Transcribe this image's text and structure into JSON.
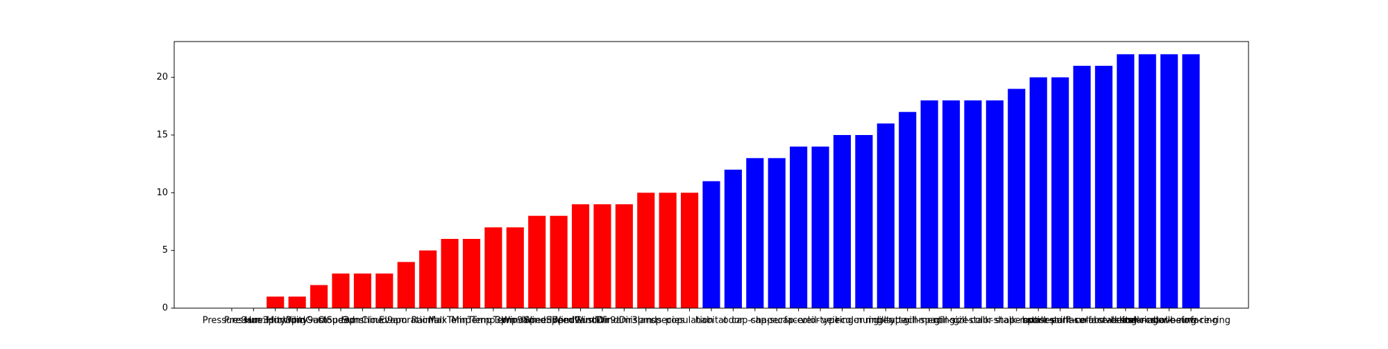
{
  "chart_data": {
    "type": "bar",
    "categories": [
      "Pressure9am",
      "Pressure3pm",
      "Humidity3pm",
      "Humidity9am",
      "WindGustSpeed",
      "Cloud3pm",
      "Sunshine",
      "Cloud9am",
      "Evaporation",
      "Rainfall",
      "MaxTemp",
      "MinTemp",
      "Temp3pm",
      "Temp9am",
      "WindSpeed3pm",
      "WindSpeed9am",
      "WindGustDir",
      "WindDir9am",
      "WindDir3pm",
      "islands",
      "species",
      "population",
      "habitat",
      "odor",
      "cap-shape",
      "cap-surface",
      "cap-color",
      "veil-type",
      "veil-color",
      "ring-number",
      "ring-type",
      "gill-attachment",
      "gill-spacing",
      "gill-size",
      "gill-color",
      "stalk-shape",
      "stalk-root",
      "bruises",
      "spore-print-color",
      "stalk-surface-above-ring",
      "stalk-surface-below-ring",
      "class",
      "stalk-color-above-ring",
      "stalk-color-below-ring",
      "stalk-surface-ring"
    ],
    "values": [
      0,
      0,
      1,
      1,
      2,
      3,
      3,
      3,
      4,
      5,
      6,
      6,
      7,
      7,
      8,
      8,
      9,
      9,
      9,
      10,
      10,
      10,
      11,
      12,
      13,
      13,
      14,
      14,
      15,
      15,
      16,
      17,
      18,
      18,
      18,
      18,
      19,
      20,
      20,
      21,
      21,
      22,
      22,
      22,
      22
    ],
    "colors": [
      "#ff0000",
      "#ff0000",
      "#ff0000",
      "#ff0000",
      "#ff0000",
      "#ff0000",
      "#ff0000",
      "#ff0000",
      "#ff0000",
      "#ff0000",
      "#ff0000",
      "#ff0000",
      "#ff0000",
      "#ff0000",
      "#ff0000",
      "#ff0000",
      "#ff0000",
      "#ff0000",
      "#ff0000",
      "#ff0000",
      "#ff0000",
      "#ff0000",
      "#0000ff",
      "#0000ff",
      "#0000ff",
      "#0000ff",
      "#0000ff",
      "#0000ff",
      "#0000ff",
      "#0000ff",
      "#0000ff",
      "#0000ff",
      "#0000ff",
      "#0000ff",
      "#0000ff",
      "#0000ff",
      "#0000ff",
      "#0000ff",
      "#0000ff",
      "#0000ff",
      "#0000ff",
      "#0000ff",
      "#0000ff",
      "#0000ff",
      "#0000ff"
    ],
    "ylim": [
      0,
      23.1
    ],
    "yticks": [
      0,
      5,
      10,
      15,
      20
    ],
    "grid": false
  }
}
